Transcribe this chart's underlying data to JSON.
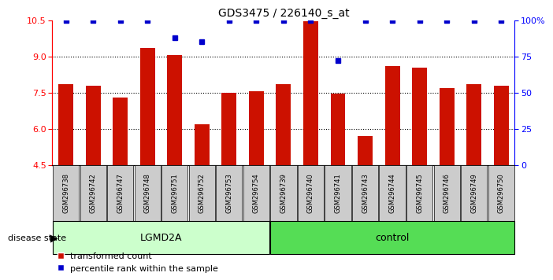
{
  "title": "GDS3475 / 226140_s_at",
  "samples": [
    "GSM296738",
    "GSM296742",
    "GSM296747",
    "GSM296748",
    "GSM296751",
    "GSM296752",
    "GSM296753",
    "GSM296754",
    "GSM296739",
    "GSM296740",
    "GSM296741",
    "GSM296743",
    "GSM296744",
    "GSM296745",
    "GSM296746",
    "GSM296749",
    "GSM296750"
  ],
  "bar_values": [
    7.85,
    7.8,
    7.3,
    9.35,
    9.05,
    6.2,
    7.5,
    7.55,
    7.85,
    10.45,
    7.45,
    5.7,
    8.6,
    8.55,
    7.7,
    7.85,
    7.8
  ],
  "dot_values": [
    100,
    100,
    100,
    100,
    88,
    85,
    100,
    100,
    100,
    100,
    72,
    100,
    100,
    100,
    100,
    100,
    100
  ],
  "groups": [
    {
      "label": "LGMD2A",
      "start": 0,
      "end": 8,
      "color": "#ccffcc"
    },
    {
      "label": "control",
      "start": 8,
      "end": 17,
      "color": "#55dd55"
    }
  ],
  "ylim": [
    4.5,
    10.5
  ],
  "yticks": [
    4.5,
    6.0,
    7.5,
    9.0,
    10.5
  ],
  "y2ticks": [
    0,
    25,
    50,
    75,
    100
  ],
  "y2tick_labels": [
    "0",
    "25",
    "50",
    "75",
    "100%"
  ],
  "bar_color": "#cc1100",
  "dot_color": "#0000cc",
  "bar_width": 0.55,
  "legend_items": [
    "transformed count",
    "percentile rank within the sample"
  ],
  "disease_state_label": "disease state",
  "grid_yticks": [
    6.0,
    7.5,
    9.0
  ],
  "bg_color": "#ffffff"
}
